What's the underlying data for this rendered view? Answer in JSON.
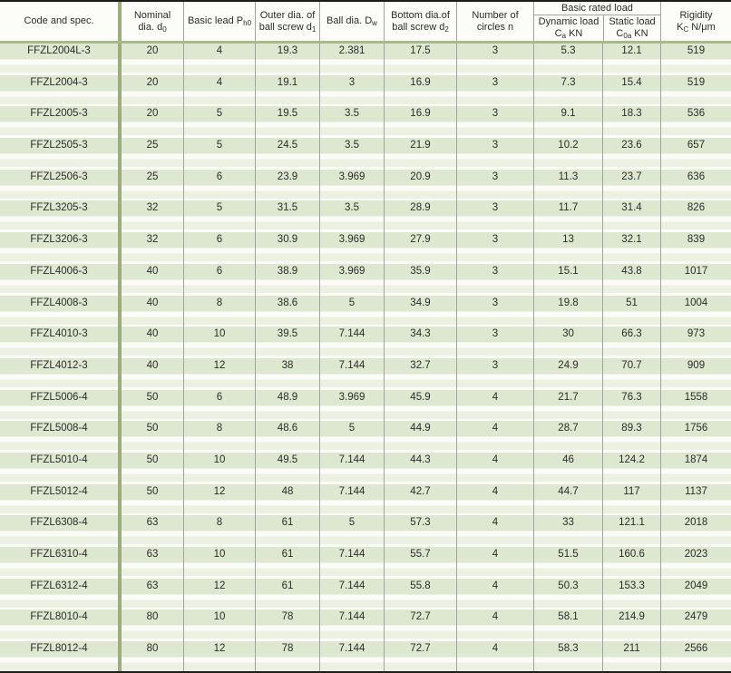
{
  "header": {
    "code": "Code and spec.",
    "nominal_l1": "Nominal",
    "nominal_l2": "dia. d",
    "nominal_sub": "0",
    "lead_text": "Basic lead P",
    "lead_sub": "h0",
    "outer_l1": "Outer dia. of",
    "outer_l2": "ball screw d",
    "outer_sub": "1",
    "ball_text": "Ball dia. D",
    "ball_sub": "w",
    "bottom_l1": "Bottom dia.of",
    "bottom_l2": "ball screw d",
    "bottom_sub": "2",
    "circles_l1": "Number of",
    "circles_l2": "circles n",
    "rated_group": "Basic rated load",
    "dynamic_l1": "Dynamic load",
    "dynamic_sym": "C",
    "dynamic_sub": "a",
    "dynamic_unit": "KN",
    "static_l1": "Static load",
    "static_sym": "C",
    "static_sub": "0a",
    "static_unit": "KN",
    "rigidity_l1": "Rigidity",
    "rigidity_sym": "K",
    "rigidity_sub": "C",
    "rigidity_unit": "N/μm"
  },
  "colors": {
    "row_band_green": "#dee7d0",
    "row_band_light": "#edf1e2",
    "gap_white": "#fbfcf7",
    "divider_olive": "#9dac7d",
    "grid_line_gray": "#a3a3a3",
    "rule_black": "#1c1c1c"
  },
  "rows": [
    {
      "code": "FFZL2004L-3",
      "d0": "20",
      "lead": "4",
      "d1": "19.3",
      "dw": "2.381",
      "d2": "17.5",
      "n": "3",
      "ca": "5.3",
      "c0a": "12.1",
      "rigidity": "519"
    },
    {
      "code": "FFZL2004-3",
      "d0": "20",
      "lead": "4",
      "d1": "19.1",
      "dw": "3",
      "d2": "16.9",
      "n": "3",
      "ca": "7.3",
      "c0a": "15.4",
      "rigidity": "519"
    },
    {
      "code": "FFZL2005-3",
      "d0": "20",
      "lead": "5",
      "d1": "19.5",
      "dw": "3.5",
      "d2": "16.9",
      "n": "3",
      "ca": "9.1",
      "c0a": "18.3",
      "rigidity": "536"
    },
    {
      "code": "FFZL2505-3",
      "d0": "25",
      "lead": "5",
      "d1": "24.5",
      "dw": "3.5",
      "d2": "21.9",
      "n": "3",
      "ca": "10.2",
      "c0a": "23.6",
      "rigidity": "657"
    },
    {
      "code": "FFZL2506-3",
      "d0": "25",
      "lead": "6",
      "d1": "23.9",
      "dw": "3.969",
      "d2": "20.9",
      "n": "3",
      "ca": "11.3",
      "c0a": "23.7",
      "rigidity": "636"
    },
    {
      "code": "FFZL3205-3",
      "d0": "32",
      "lead": "5",
      "d1": "31.5",
      "dw": "3.5",
      "d2": "28.9",
      "n": "3",
      "ca": "11.7",
      "c0a": "31.4",
      "rigidity": "826"
    },
    {
      "code": "FFZL3206-3",
      "d0": "32",
      "lead": "6",
      "d1": "30.9",
      "dw": "3.969",
      "d2": "27.9",
      "n": "3",
      "ca": "13",
      "c0a": "32.1",
      "rigidity": "839"
    },
    {
      "code": "FFZL4006-3",
      "d0": "40",
      "lead": "6",
      "d1": "38.9",
      "dw": "3.969",
      "d2": "35.9",
      "n": "3",
      "ca": "15.1",
      "c0a": "43.8",
      "rigidity": "1017"
    },
    {
      "code": "FFZL4008-3",
      "d0": "40",
      "lead": "8",
      "d1": "38.6",
      "dw": "5",
      "d2": "34.9",
      "n": "3",
      "ca": "19.8",
      "c0a": "51",
      "rigidity": "1004"
    },
    {
      "code": "FFZL4010-3",
      "d0": "40",
      "lead": "10",
      "d1": "39.5",
      "dw": "7.144",
      "d2": "34.3",
      "n": "3",
      "ca": "30",
      "c0a": "66.3",
      "rigidity": "973"
    },
    {
      "code": "FFZL4012-3",
      "d0": "40",
      "lead": "12",
      "d1": "38",
      "dw": "7.144",
      "d2": "32.7",
      "n": "3",
      "ca": "24.9",
      "c0a": "70.7",
      "rigidity": "909"
    },
    {
      "code": "FFZL5006-4",
      "d0": "50",
      "lead": "6",
      "d1": "48.9",
      "dw": "3.969",
      "d2": "45.9",
      "n": "4",
      "ca": "21.7",
      "c0a": "76.3",
      "rigidity": "1558"
    },
    {
      "code": "FFZL5008-4",
      "d0": "50",
      "lead": "8",
      "d1": "48.6",
      "dw": "5",
      "d2": "44.9",
      "n": "4",
      "ca": "28.7",
      "c0a": "89.3",
      "rigidity": "1756"
    },
    {
      "code": "FFZL5010-4",
      "d0": "50",
      "lead": "10",
      "d1": "49.5",
      "dw": "7.144",
      "d2": "44.3",
      "n": "4",
      "ca": "46",
      "c0a": "124.2",
      "rigidity": "1874"
    },
    {
      "code": "FFZL5012-4",
      "d0": "50",
      "lead": "12",
      "d1": "48",
      "dw": "7.144",
      "d2": "42.7",
      "n": "4",
      "ca": "44.7",
      "c0a": "117",
      "rigidity": "1137"
    },
    {
      "code": "FFZL6308-4",
      "d0": "63",
      "lead": "8",
      "d1": "61",
      "dw": "5",
      "d2": "57.3",
      "n": "4",
      "ca": "33",
      "c0a": "121.1",
      "rigidity": "2018"
    },
    {
      "code": "FFZL6310-4",
      "d0": "63",
      "lead": "10",
      "d1": "61",
      "dw": "7.144",
      "d2": "55.7",
      "n": "4",
      "ca": "51.5",
      "c0a": "160.6",
      "rigidity": "2023"
    },
    {
      "code": "FFZL6312-4",
      "d0": "63",
      "lead": "12",
      "d1": "61",
      "dw": "7.144",
      "d2": "55.8",
      "n": "4",
      "ca": "50.3",
      "c0a": "153.3",
      "rigidity": "2049"
    },
    {
      "code": "FFZL8010-4",
      "d0": "80",
      "lead": "10",
      "d1": "78",
      "dw": "7.144",
      "d2": "72.7",
      "n": "4",
      "ca": "58.1",
      "c0a": "214.9",
      "rigidity": "2479"
    },
    {
      "code": "FFZL8012-4",
      "d0": "80",
      "lead": "12",
      "d1": "78",
      "dw": "7.144",
      "d2": "72.7",
      "n": "4",
      "ca": "58.3",
      "c0a": "211",
      "rigidity": "2566"
    }
  ]
}
